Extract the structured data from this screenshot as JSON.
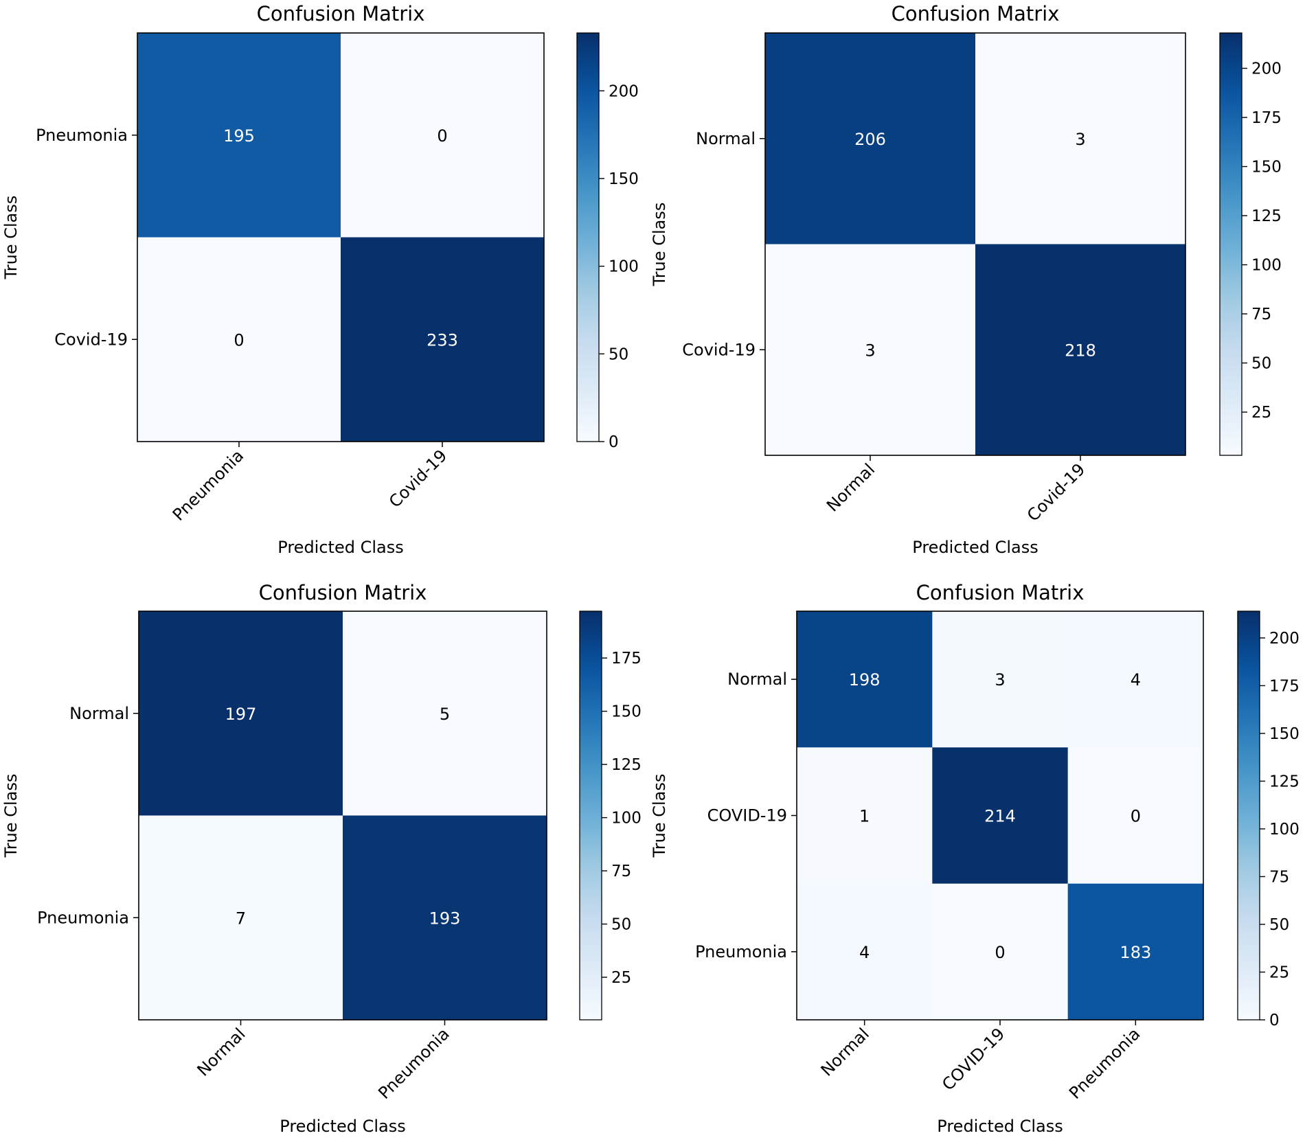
{
  "chart_data": [
    {
      "type": "heatmap",
      "title": "Confusion Matrix",
      "xlabel": "Predicted Class",
      "ylabel": "True Class",
      "x_categories": [
        "Pneumonia",
        "Covid-19"
      ],
      "y_categories": [
        "Pneumonia",
        "Covid-19"
      ],
      "values": [
        [
          195,
          0
        ],
        [
          0,
          233
        ]
      ],
      "colorbar": {
        "ticks": [
          0,
          50,
          100,
          150,
          200
        ],
        "range": [
          0,
          233
        ]
      },
      "colormap": "Blues"
    },
    {
      "type": "heatmap",
      "title": "Confusion Matrix",
      "xlabel": "Predicted Class",
      "ylabel": "True Class",
      "x_categories": [
        "Normal",
        "Covid-19"
      ],
      "y_categories": [
        "Normal",
        "Covid-19"
      ],
      "values": [
        [
          206,
          3
        ],
        [
          3,
          218
        ]
      ],
      "colorbar": {
        "ticks": [
          25,
          50,
          75,
          100,
          125,
          150,
          175,
          200
        ],
        "range": [
          3,
          218
        ]
      },
      "colormap": "Blues"
    },
    {
      "type": "heatmap",
      "title": "Confusion Matrix",
      "xlabel": "Predicted Class",
      "ylabel": "True Class",
      "x_categories": [
        "Normal",
        "Pneumonia"
      ],
      "y_categories": [
        "Normal",
        "Pneumonia"
      ],
      "values": [
        [
          197,
          5
        ],
        [
          7,
          193
        ]
      ],
      "colorbar": {
        "ticks": [
          25,
          50,
          75,
          100,
          125,
          150,
          175
        ],
        "range": [
          5,
          197
        ]
      },
      "colormap": "Blues"
    },
    {
      "type": "heatmap",
      "title": "Confusion Matrix",
      "xlabel": "Predicted Class",
      "ylabel": "True Class",
      "x_categories": [
        "Normal",
        "COVID-19",
        "Pneumonia"
      ],
      "y_categories": [
        "Normal",
        "COVID-19",
        "Pneumonia"
      ],
      "values": [
        [
          198,
          3,
          4
        ],
        [
          1,
          214,
          0
        ],
        [
          4,
          0,
          183
        ]
      ],
      "colorbar": {
        "ticks": [
          0,
          25,
          50,
          75,
          100,
          125,
          150,
          175,
          200
        ],
        "range": [
          0,
          214
        ]
      },
      "colormap": "Blues"
    }
  ]
}
